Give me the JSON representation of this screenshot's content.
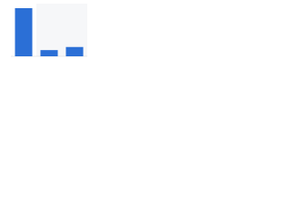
{
  "chart_data": {
    "type": "bar",
    "categories": [
      null,
      null,
      null
    ],
    "values": [
      93,
      12,
      18
    ],
    "color": "#2b6fd6",
    "ylim": [
      0,
      100
    ]
  }
}
